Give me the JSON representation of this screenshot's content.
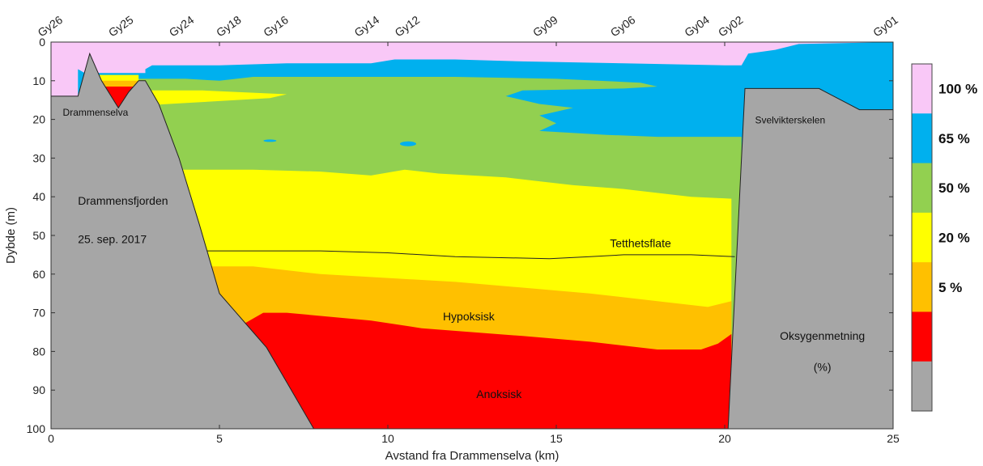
{
  "chart_data": {
    "type": "area",
    "title": "",
    "xlabel": "Avstand fra Drammenselva (km)",
    "ylabel": "Dybde (m)",
    "xlim": [
      0,
      25
    ],
    "ylim": [
      100,
      0
    ],
    "x_ticks": [
      0,
      5,
      10,
      15,
      20,
      25
    ],
    "y_ticks": [
      0,
      10,
      20,
      30,
      40,
      50,
      60,
      70,
      80,
      90,
      100
    ],
    "stations": [
      {
        "name": "Gy26",
        "x": 0.0
      },
      {
        "name": "Gy25",
        "x": 2.1
      },
      {
        "name": "Gy24",
        "x": 3.9
      },
      {
        "name": "Gy18",
        "x": 5.3
      },
      {
        "name": "Gy16",
        "x": 6.7
      },
      {
        "name": "Gy14",
        "x": 9.4
      },
      {
        "name": "Gy12",
        "x": 10.6
      },
      {
        "name": "Gy09",
        "x": 14.7
      },
      {
        "name": "Gy06",
        "x": 17.0
      },
      {
        "name": "Gy04",
        "x": 19.2
      },
      {
        "name": "Gy02",
        "x": 20.2
      },
      {
        "name": "Gy01",
        "x": 24.8
      }
    ],
    "colorbar": {
      "colors": [
        "#f9c8f7",
        "#00b0ee",
        "#92d050",
        "#ffff00",
        "#ffc000",
        "#ff0000",
        "#a6a6a6"
      ],
      "labels": [
        "100 %",
        "65 %",
        "50 %",
        "20 %",
        "5 %"
      ]
    },
    "oxygen_class_colors": {
      "100": "#f9c8f7",
      "65": "#00b0ee",
      "50": "#92d050",
      "20": "#ffff00",
      "5": "#ffc000",
      "0": "#ff0000",
      "bottom": "#a6a6a6"
    },
    "annotations": {
      "river": "Drammenselva",
      "fjord": "Drammensfjorden",
      "date": "25. sep. 2017",
      "sill": "Svelvikterskelen",
      "density_surface": "Tetthetsflate",
      "hypoxic": "Hypoksisk",
      "anoxic": "Anoksisk",
      "oxygen_title": "Oksygenmetning",
      "oxygen_unit": "(%)"
    },
    "isolines": {
      "pink_blue": [
        [
          0.8,
          7
        ],
        [
          1.0,
          8
        ],
        [
          2.8,
          8
        ],
        [
          2.8,
          7
        ],
        [
          3.0,
          6
        ],
        [
          5.0,
          6
        ],
        [
          7.0,
          5.5
        ],
        [
          9.5,
          5.5
        ],
        [
          10.2,
          4.5
        ],
        [
          12.0,
          4.5
        ],
        [
          14.0,
          5
        ],
        [
          17.0,
          5.5
        ],
        [
          20.0,
          6
        ],
        [
          20.5,
          6
        ],
        [
          20.7,
          3
        ],
        [
          21.5,
          2
        ],
        [
          22.2,
          0.5
        ]
      ],
      "blue_green": [
        [
          1.0,
          8.5
        ],
        [
          2.5,
          9.5
        ],
        [
          4.0,
          9.5
        ],
        [
          5.0,
          10
        ],
        [
          6.0,
          9
        ],
        [
          8.0,
          9
        ],
        [
          10.0,
          9
        ],
        [
          12.0,
          9
        ],
        [
          15.0,
          9.5
        ],
        [
          17.5,
          10.5
        ],
        [
          18.0,
          11.5
        ],
        [
          17.0,
          12
        ],
        [
          14.0,
          12.5
        ],
        [
          13.5,
          14
        ],
        [
          14.5,
          16
        ],
        [
          15.5,
          17
        ],
        [
          14.5,
          19
        ],
        [
          15.0,
          21
        ],
        [
          14.5,
          23
        ],
        [
          16.5,
          24
        ],
        [
          18.0,
          24.5
        ],
        [
          20.5,
          24.5
        ]
      ],
      "green_yellow": [
        [
          3.8,
          33
        ],
        [
          6.0,
          33
        ],
        [
          8.0,
          33.5
        ],
        [
          9.5,
          34.5
        ],
        [
          10.5,
          33
        ],
        [
          11.5,
          34
        ],
        [
          13.5,
          35
        ],
        [
          14.5,
          36
        ],
        [
          15.5,
          37
        ],
        [
          17.0,
          38
        ],
        [
          19.0,
          40
        ],
        [
          20.2,
          40.5
        ]
      ],
      "yellow_orange": [
        [
          4.7,
          58
        ],
        [
          6.0,
          58
        ],
        [
          8.0,
          60
        ],
        [
          10.0,
          61
        ],
        [
          12.0,
          62
        ],
        [
          14.0,
          63.5
        ],
        [
          16.0,
          65
        ],
        [
          18.0,
          67
        ],
        [
          19.5,
          68.5
        ],
        [
          20.2,
          67
        ]
      ],
      "orange_red": [
        [
          5.7,
          73
        ],
        [
          6.3,
          70
        ],
        [
          7.0,
          70
        ],
        [
          9.5,
          72
        ],
        [
          11.0,
          74
        ],
        [
          14.0,
          76
        ],
        [
          16.0,
          77.5
        ],
        [
          18.0,
          79.5
        ],
        [
          19.3,
          79.5
        ],
        [
          19.8,
          78
        ],
        [
          20.2,
          75.5
        ]
      ],
      "density_surface": [
        [
          4.6,
          54
        ],
        [
          8.0,
          54
        ],
        [
          10.0,
          54.5
        ],
        [
          12.0,
          55.5
        ],
        [
          14.8,
          56
        ],
        [
          16.0,
          55.5
        ],
        [
          17.0,
          55
        ],
        [
          18.0,
          55
        ],
        [
          19.0,
          55
        ],
        [
          20.3,
          55.5
        ]
      ]
    },
    "topography": {
      "left": [
        [
          0,
          14
        ],
        [
          0.8,
          14
        ],
        [
          1.15,
          3
        ],
        [
          1.5,
          10
        ],
        [
          2.0,
          17
        ],
        [
          2.3,
          13
        ],
        [
          2.6,
          10
        ],
        [
          2.8,
          10
        ],
        [
          3.2,
          16
        ],
        [
          3.8,
          30
        ],
        [
          4.4,
          47
        ],
        [
          5.0,
          65
        ],
        [
          6.0,
          75
        ],
        [
          6.4,
          79
        ],
        [
          7.0,
          88
        ],
        [
          7.8,
          100
        ],
        [
          0,
          100
        ]
      ],
      "right": [
        [
          20.1,
          100
        ],
        [
          20.6,
          12
        ],
        [
          22.8,
          12
        ],
        [
          24.0,
          17.5
        ],
        [
          25.0,
          17.5
        ],
        [
          25.0,
          100
        ]
      ]
    }
  }
}
